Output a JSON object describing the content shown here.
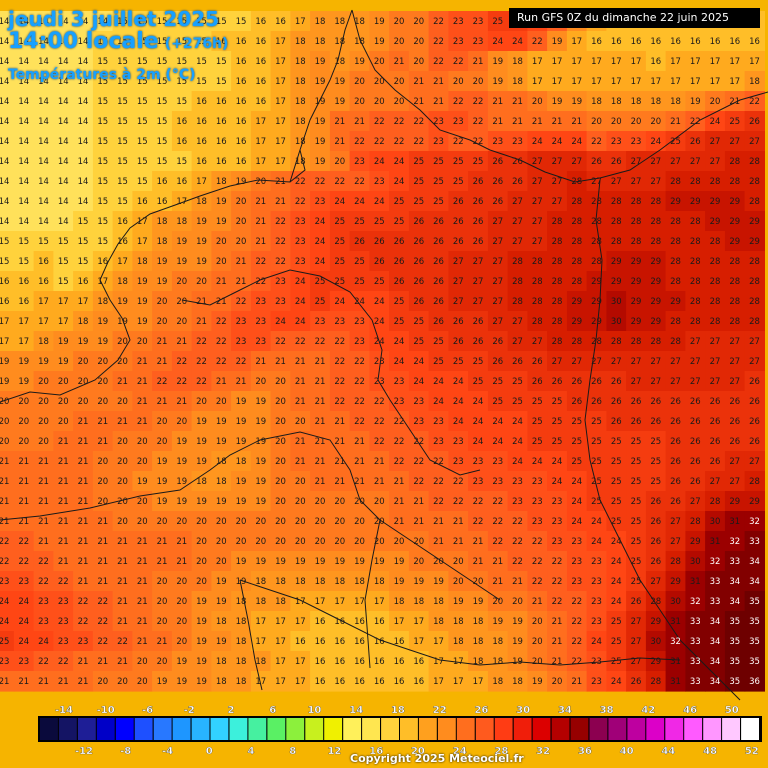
{
  "title": {
    "date": "jeudi 3 juillet 2025",
    "time": "14:00 locale",
    "lead": "(+276h)",
    "variable": "Températures à 2m (°C)"
  },
  "run_info": "Run GFS 0Z du dimanche 22 juin 2025",
  "copyright": "Copyright 2025 Meteociel.fr",
  "legend": {
    "top_labels": [
      "-14",
      "-10",
      "-6",
      "-2",
      "2",
      "6",
      "10",
      "14",
      "18",
      "22",
      "26",
      "30",
      "34",
      "38",
      "42",
      "46",
      "50"
    ],
    "bottom_labels": [
      "-12",
      "-8",
      "-4",
      "0",
      "4",
      "8",
      "12",
      "16",
      "20",
      "24",
      "28",
      "32",
      "36",
      "40",
      "44",
      "48",
      "52"
    ],
    "colors": [
      "#0a0a3c",
      "#141464",
      "#1e1e96",
      "#0000c8",
      "#0000ff",
      "#1e50ff",
      "#2878ff",
      "#1e96ff",
      "#28b4ff",
      "#32d2ff",
      "#3cf0dc",
      "#46f0a0",
      "#5af064",
      "#8cf03c",
      "#c8f01e",
      "#f0f000",
      "#fff05a",
      "#ffe650",
      "#ffd23c",
      "#ffbe28",
      "#ffa01e",
      "#ff8c1e",
      "#ff6e1e",
      "#ff5a1e",
      "#ff3c14",
      "#f01e0a",
      "#dc0000",
      "#b40000",
      "#960000",
      "#8c0050",
      "#a00078",
      "#be00a0",
      "#dc00c8",
      "#f028e6",
      "#ff5aff",
      "#ff96ff",
      "#ffc8ff",
      "#ffffff"
    ]
  },
  "field": {
    "rows": [
      [
        14,
        14,
        14,
        14,
        14,
        14,
        15,
        15,
        15,
        15,
        15,
        15,
        15,
        16,
        16,
        17,
        18,
        18,
        18,
        19,
        20,
        20,
        22,
        23,
        23,
        25,
        25,
        24,
        22,
        19,
        17,
        16,
        16,
        16,
        16,
        16,
        16,
        16,
        16
      ],
      [
        14,
        14,
        14,
        14,
        14,
        15,
        15,
        15,
        15,
        15,
        15,
        16,
        16,
        16,
        17,
        18,
        18,
        18,
        18,
        19,
        20,
        20,
        22,
        23,
        23,
        24,
        24,
        22,
        19,
        17,
        16,
        16,
        16,
        16,
        16,
        16,
        16,
        16,
        16
      ],
      [
        14,
        14,
        14,
        14,
        14,
        15,
        15,
        15,
        15,
        15,
        15,
        15,
        16,
        16,
        17,
        18,
        19,
        18,
        19,
        20,
        21,
        20,
        22,
        22,
        21,
        19,
        18,
        17,
        17,
        17,
        17,
        17,
        17,
        16,
        17,
        17,
        17,
        17,
        17
      ],
      [
        14,
        14,
        14,
        14,
        14,
        15,
        15,
        15,
        15,
        15,
        15,
        15,
        16,
        16,
        17,
        18,
        19,
        19,
        20,
        20,
        20,
        21,
        21,
        20,
        20,
        19,
        18,
        17,
        17,
        17,
        17,
        17,
        17,
        17,
        17,
        17,
        17,
        17,
        18
      ],
      [
        14,
        14,
        14,
        14,
        14,
        15,
        15,
        15,
        15,
        15,
        16,
        16,
        16,
        16,
        17,
        18,
        19,
        19,
        20,
        20,
        20,
        21,
        21,
        22,
        22,
        21,
        21,
        20,
        19,
        19,
        18,
        18,
        18,
        18,
        18,
        19,
        20,
        21,
        22
      ],
      [
        14,
        14,
        14,
        14,
        14,
        15,
        15,
        15,
        15,
        16,
        16,
        16,
        16,
        17,
        17,
        18,
        19,
        21,
        21,
        22,
        22,
        22,
        23,
        23,
        22,
        21,
        21,
        21,
        21,
        21,
        20,
        20,
        20,
        20,
        21,
        22,
        24,
        25,
        26
      ],
      [
        14,
        14,
        14,
        14,
        14,
        15,
        15,
        15,
        15,
        16,
        16,
        16,
        16,
        17,
        17,
        18,
        19,
        21,
        22,
        22,
        22,
        22,
        23,
        22,
        22,
        23,
        23,
        24,
        24,
        24,
        22,
        23,
        23,
        24,
        25,
        26,
        27,
        27,
        27
      ],
      [
        14,
        14,
        14,
        14,
        14,
        15,
        15,
        15,
        15,
        15,
        16,
        16,
        16,
        17,
        17,
        18,
        19,
        20,
        23,
        24,
        24,
        25,
        25,
        25,
        25,
        26,
        26,
        27,
        27,
        27,
        26,
        26,
        27,
        27,
        27,
        27,
        27,
        28,
        28
      ],
      [
        14,
        14,
        14,
        14,
        14,
        15,
        15,
        15,
        16,
        16,
        17,
        18,
        19,
        20,
        21,
        22,
        22,
        22,
        22,
        23,
        24,
        25,
        25,
        25,
        26,
        26,
        26,
        27,
        27,
        28,
        27,
        27,
        27,
        27,
        28,
        28,
        28,
        28,
        28
      ],
      [
        14,
        14,
        14,
        14,
        14,
        15,
        15,
        16,
        16,
        17,
        18,
        19,
        20,
        21,
        21,
        22,
        23,
        24,
        24,
        24,
        25,
        25,
        25,
        26,
        26,
        26,
        27,
        27,
        27,
        28,
        28,
        28,
        28,
        28,
        29,
        29,
        29,
        29,
        28
      ],
      [
        14,
        14,
        14,
        14,
        15,
        15,
        16,
        17,
        18,
        18,
        19,
        19,
        20,
        21,
        22,
        23,
        24,
        25,
        25,
        25,
        25,
        26,
        26,
        26,
        26,
        27,
        27,
        27,
        28,
        28,
        28,
        28,
        28,
        28,
        28,
        28,
        29,
        29,
        29
      ],
      [
        15,
        15,
        15,
        15,
        15,
        15,
        16,
        17,
        18,
        19,
        19,
        20,
        20,
        21,
        22,
        23,
        24,
        25,
        26,
        26,
        26,
        26,
        26,
        26,
        26,
        27,
        27,
        27,
        28,
        28,
        28,
        28,
        28,
        28,
        28,
        28,
        28,
        29,
        29
      ],
      [
        15,
        15,
        16,
        15,
        15,
        16,
        17,
        18,
        19,
        19,
        19,
        20,
        21,
        22,
        22,
        23,
        24,
        25,
        25,
        26,
        26,
        26,
        26,
        27,
        27,
        27,
        28,
        28,
        28,
        28,
        28,
        29,
        29,
        29,
        28,
        28,
        28,
        28,
        28
      ],
      [
        16,
        16,
        16,
        15,
        16,
        17,
        18,
        19,
        19,
        20,
        20,
        21,
        21,
        22,
        23,
        24,
        25,
        25,
        25,
        25,
        26,
        26,
        26,
        27,
        27,
        27,
        28,
        28,
        28,
        28,
        29,
        29,
        29,
        29,
        28,
        28,
        28,
        28,
        28
      ],
      [
        16,
        16,
        17,
        17,
        17,
        18,
        19,
        19,
        20,
        20,
        21,
        21,
        22,
        23,
        23,
        24,
        25,
        24,
        24,
        24,
        25,
        26,
        26,
        27,
        27,
        27,
        28,
        28,
        28,
        29,
        29,
        30,
        29,
        29,
        29,
        28,
        28,
        28,
        28
      ],
      [
        17,
        17,
        17,
        17,
        18,
        19,
        19,
        19,
        20,
        20,
        21,
        22,
        23,
        23,
        24,
        24,
        23,
        23,
        23,
        24,
        25,
        25,
        26,
        26,
        26,
        27,
        27,
        28,
        28,
        29,
        29,
        30,
        29,
        29,
        28,
        28,
        28,
        28,
        28
      ],
      [
        17,
        17,
        18,
        19,
        19,
        19,
        20,
        20,
        21,
        21,
        22,
        22,
        23,
        23,
        22,
        22,
        22,
        22,
        23,
        24,
        24,
        25,
        25,
        26,
        26,
        26,
        27,
        27,
        28,
        28,
        28,
        28,
        28,
        28,
        28,
        27,
        27,
        27,
        27
      ],
      [
        19,
        19,
        19,
        19,
        20,
        20,
        20,
        21,
        21,
        22,
        22,
        22,
        22,
        21,
        21,
        21,
        21,
        22,
        22,
        23,
        24,
        24,
        25,
        25,
        25,
        26,
        26,
        26,
        27,
        27,
        27,
        27,
        27,
        27,
        27,
        27,
        27,
        27,
        27
      ],
      [
        19,
        19,
        20,
        20,
        20,
        20,
        21,
        21,
        22,
        22,
        22,
        21,
        21,
        20,
        20,
        21,
        21,
        22,
        22,
        23,
        23,
        24,
        24,
        24,
        25,
        25,
        25,
        26,
        26,
        26,
        26,
        26,
        27,
        27,
        27,
        27,
        27,
        27,
        26
      ],
      [
        20,
        20,
        20,
        20,
        20,
        20,
        20,
        21,
        21,
        21,
        20,
        20,
        19,
        19,
        20,
        21,
        21,
        22,
        22,
        22,
        23,
        23,
        24,
        24,
        24,
        25,
        25,
        25,
        25,
        26,
        26,
        26,
        26,
        26,
        26,
        26,
        26,
        26,
        26
      ],
      [
        20,
        20,
        20,
        20,
        21,
        21,
        21,
        21,
        20,
        20,
        19,
        19,
        19,
        19,
        20,
        20,
        21,
        21,
        22,
        22,
        22,
        23,
        23,
        24,
        24,
        24,
        24,
        25,
        25,
        25,
        25,
        26,
        26,
        26,
        26,
        26,
        26,
        26,
        26
      ],
      [
        20,
        20,
        20,
        21,
        21,
        21,
        20,
        20,
        20,
        19,
        19,
        19,
        19,
        19,
        20,
        21,
        21,
        21,
        21,
        22,
        22,
        22,
        23,
        23,
        24,
        24,
        24,
        25,
        25,
        25,
        25,
        25,
        25,
        25,
        26,
        26,
        26,
        26,
        26
      ],
      [
        21,
        21,
        21,
        21,
        21,
        20,
        20,
        20,
        19,
        19,
        19,
        18,
        18,
        19,
        20,
        21,
        21,
        21,
        21,
        21,
        22,
        22,
        22,
        23,
        23,
        23,
        24,
        24,
        24,
        25,
        25,
        25,
        25,
        25,
        26,
        26,
        26,
        27,
        27
      ],
      [
        21,
        21,
        21,
        21,
        21,
        20,
        20,
        19,
        19,
        19,
        18,
        18,
        19,
        19,
        20,
        20,
        21,
        21,
        21,
        21,
        21,
        22,
        22,
        22,
        23,
        23,
        23,
        23,
        24,
        24,
        25,
        25,
        25,
        25,
        26,
        26,
        27,
        27,
        28
      ],
      [
        21,
        21,
        21,
        21,
        21,
        20,
        20,
        20,
        19,
        19,
        19,
        19,
        19,
        19,
        20,
        20,
        20,
        20,
        20,
        20,
        21,
        21,
        22,
        22,
        22,
        22,
        23,
        23,
        23,
        24,
        25,
        25,
        25,
        26,
        26,
        27,
        28,
        29,
        29
      ],
      [
        21,
        21,
        21,
        21,
        21,
        21,
        20,
        20,
        20,
        20,
        20,
        20,
        20,
        20,
        20,
        20,
        20,
        20,
        20,
        20,
        21,
        21,
        21,
        21,
        22,
        22,
        22,
        23,
        23,
        24,
        24,
        25,
        25,
        26,
        27,
        28,
        30,
        31,
        32
      ],
      [
        22,
        22,
        21,
        21,
        21,
        21,
        21,
        21,
        21,
        21,
        20,
        20,
        20,
        20,
        20,
        20,
        20,
        20,
        20,
        20,
        20,
        20,
        21,
        21,
        21,
        22,
        22,
        22,
        23,
        23,
        24,
        24,
        25,
        26,
        27,
        29,
        31,
        32,
        33
      ],
      [
        22,
        22,
        22,
        21,
        21,
        21,
        21,
        21,
        21,
        21,
        20,
        20,
        19,
        19,
        19,
        19,
        19,
        19,
        19,
        19,
        19,
        20,
        20,
        20,
        21,
        21,
        22,
        22,
        22,
        23,
        23,
        24,
        25,
        26,
        28,
        30,
        32,
        33,
        34
      ],
      [
        23,
        23,
        22,
        22,
        21,
        21,
        21,
        21,
        20,
        20,
        20,
        19,
        19,
        18,
        18,
        18,
        18,
        18,
        18,
        18,
        19,
        19,
        19,
        20,
        20,
        21,
        21,
        22,
        22,
        23,
        23,
        24,
        25,
        27,
        29,
        31,
        33,
        34,
        34
      ],
      [
        24,
        24,
        23,
        23,
        22,
        22,
        21,
        21,
        20,
        20,
        19,
        19,
        18,
        18,
        18,
        17,
        17,
        17,
        17,
        17,
        18,
        18,
        18,
        19,
        19,
        20,
        20,
        21,
        22,
        22,
        23,
        24,
        26,
        28,
        30,
        32,
        33,
        34,
        35
      ],
      [
        24,
        24,
        23,
        23,
        22,
        22,
        21,
        21,
        20,
        20,
        19,
        18,
        18,
        17,
        17,
        17,
        16,
        16,
        16,
        16,
        17,
        17,
        18,
        18,
        18,
        19,
        19,
        20,
        21,
        22,
        23,
        25,
        27,
        29,
        31,
        33,
        34,
        35,
        35
      ],
      [
        25,
        24,
        24,
        23,
        23,
        22,
        22,
        21,
        21,
        20,
        19,
        19,
        18,
        17,
        17,
        16,
        16,
        16,
        16,
        16,
        16,
        17,
        17,
        18,
        18,
        18,
        19,
        20,
        21,
        22,
        24,
        25,
        27,
        30,
        32,
        33,
        34,
        35,
        35
      ],
      [
        23,
        23,
        22,
        22,
        21,
        21,
        21,
        20,
        20,
        19,
        19,
        18,
        18,
        18,
        17,
        17,
        16,
        16,
        16,
        16,
        16,
        16,
        17,
        17,
        18,
        18,
        19,
        20,
        21,
        22,
        23,
        25,
        27,
        29,
        31,
        33,
        34,
        35,
        35
      ],
      [
        21,
        21,
        21,
        21,
        21,
        20,
        20,
        20,
        19,
        19,
        19,
        18,
        18,
        17,
        17,
        17,
        16,
        16,
        16,
        16,
        16,
        16,
        17,
        17,
        17,
        18,
        18,
        19,
        20,
        21,
        23,
        24,
        26,
        28,
        31,
        33,
        34,
        35,
        36
      ]
    ]
  }
}
